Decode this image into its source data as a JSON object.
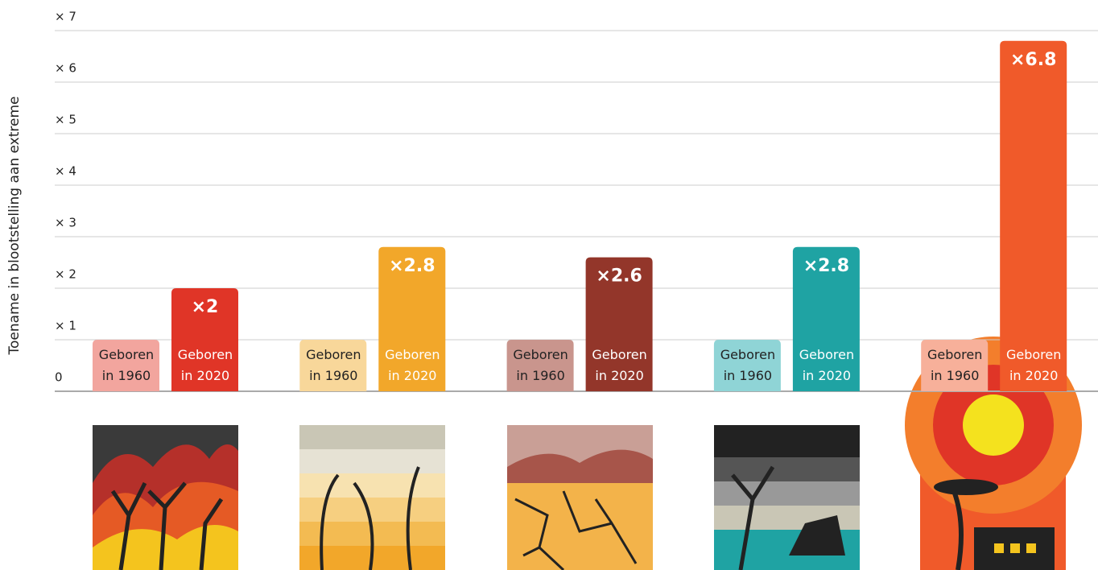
{
  "chart_data": {
    "type": "bar",
    "y_label": "Toename in blootstelling aan extreme",
    "categories": [
      null,
      null,
      null,
      null,
      null
    ],
    "series": [
      {
        "name": "Geboren in 1960",
        "values": [
          1,
          1,
          1,
          1,
          1
        ],
        "colors": [
          "#f2a59e",
          "#f8d79a",
          "#c9958d",
          "#8fd4d6",
          "#f7b09a"
        ],
        "text_color": "#222222"
      },
      {
        "name": "Geboren in 2020",
        "values": [
          2,
          2.8,
          2.6,
          2.8,
          6.8
        ],
        "value_labels": [
          "×2",
          "×2.8",
          "×2.6",
          "×2.8",
          "×6.8"
        ],
        "colors": [
          "#e03527",
          "#f2a72a",
          "#93362a",
          "#1fa3a3",
          "#f05a2a"
        ],
        "text_color": "#ffffff"
      }
    ],
    "ylim": [
      0,
      7
    ],
    "yticks": [
      0,
      {
        "value": 1,
        "label": "× 1"
      },
      {
        "value": 2,
        "label": "× 2"
      },
      {
        "value": 3,
        "label": "× 3"
      },
      {
        "value": 4,
        "label": "× 4"
      },
      {
        "value": 5,
        "label": "× 5"
      },
      {
        "value": 6,
        "label": "× 6"
      },
      {
        "value": 7,
        "label": "× 7"
      }
    ],
    "grid": true
  }
}
